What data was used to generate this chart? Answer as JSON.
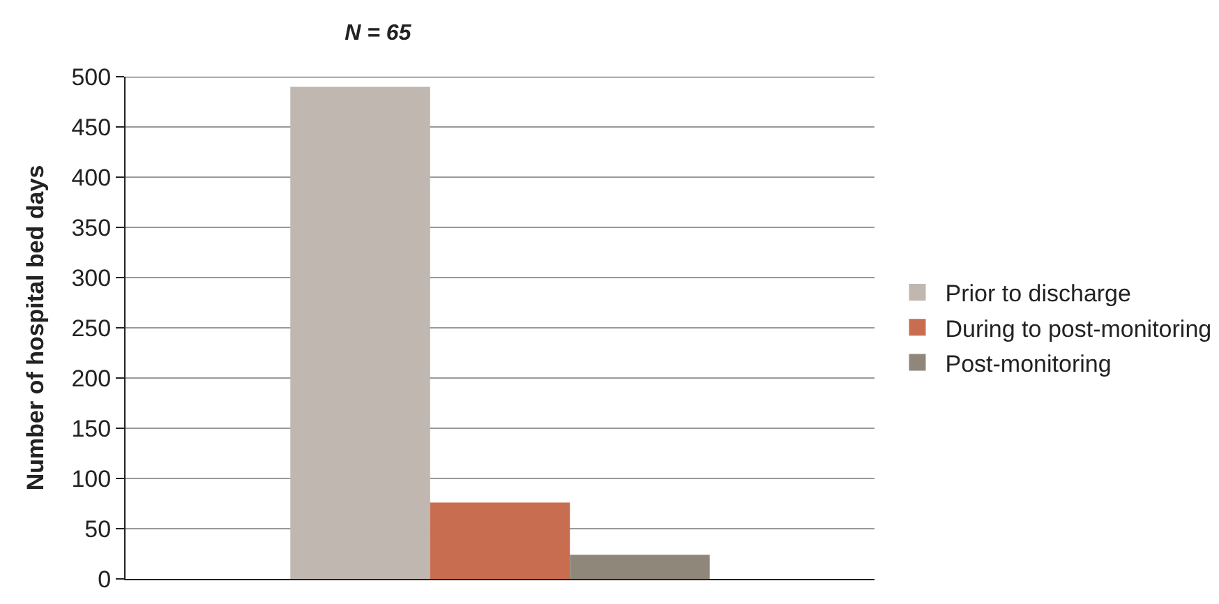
{
  "chart_data": {
    "type": "bar",
    "title": "N = 65",
    "ylabel": "Number of hospital bed days",
    "categories": [
      null
    ],
    "series": [
      {
        "name": "Prior to discharge",
        "color": "#bfb7b0",
        "values": [
          490
        ]
      },
      {
        "name": "During to post-monitoring",
        "color": "#c96d51",
        "values": [
          76
        ]
      },
      {
        "name": "Post-monitoring",
        "color": "#8f877a",
        "values": [
          24
        ]
      }
    ],
    "ylim": [
      0,
      500
    ],
    "yticks": [
      0,
      50,
      100,
      150,
      200,
      250,
      300,
      350,
      400,
      450,
      500
    ],
    "grid": "y",
    "legend": "right"
  }
}
